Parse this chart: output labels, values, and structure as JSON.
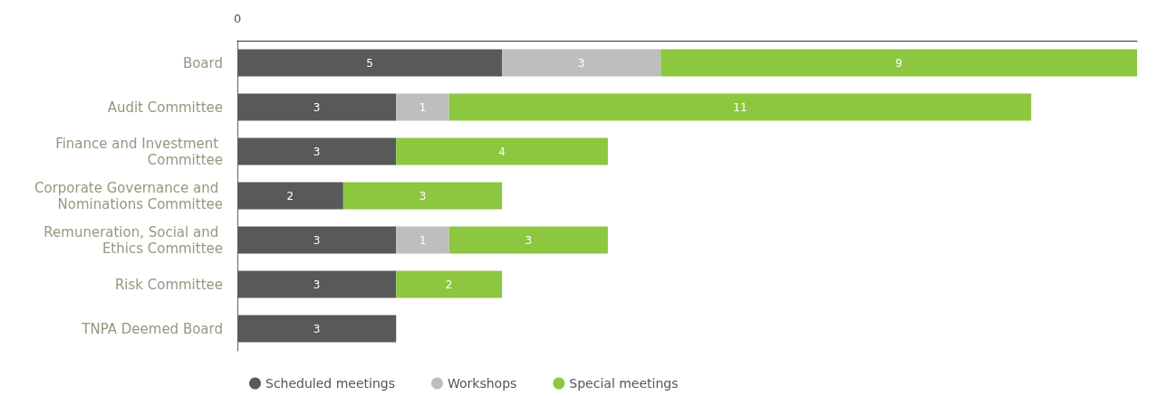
{
  "chart_data": {
    "type": "bar",
    "orientation": "horizontal",
    "stacked": true,
    "data_labels": true,
    "legend": "bottom",
    "annotations": [
      "0"
    ],
    "categories": [
      "Board",
      "Audit Committee",
      "Finance and Investment Committee",
      "Corporate Governance and Nominations Committee",
      "Remuneration, Social and Ethics Committee",
      "Risk Committee",
      "TNPA Deemed Board"
    ],
    "series": [
      {
        "name": "Scheduled meetings",
        "color": "#58595b",
        "values": [
          5,
          3,
          3,
          2,
          3,
          3,
          3
        ]
      },
      {
        "name": "Workshops",
        "color": "#bcbec0",
        "values": [
          3,
          1,
          null,
          null,
          1,
          null,
          null
        ]
      },
      {
        "name": "Special meetings",
        "color": "#8dc63f",
        "values": [
          9,
          11,
          4,
          3,
          3,
          2,
          null
        ]
      }
    ],
    "xlim": [
      0,
      17
    ]
  }
}
